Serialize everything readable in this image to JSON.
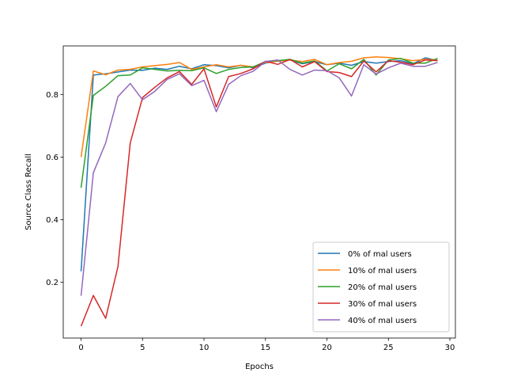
{
  "chart_data": {
    "type": "line",
    "title": "",
    "xlabel": "Epochs",
    "ylabel": "Source Class Recall",
    "xlim": [
      -1.45,
      30.45
    ],
    "ylim": [
      0.022,
      0.955
    ],
    "xticks": [
      0,
      5,
      10,
      15,
      20,
      25,
      30
    ],
    "yticks": [
      0.2,
      0.4,
      0.6,
      0.8
    ],
    "grid": false,
    "legend_position": "lower right",
    "x": [
      0,
      1,
      2,
      3,
      4,
      5,
      6,
      7,
      8,
      9,
      10,
      11,
      12,
      13,
      14,
      15,
      16,
      17,
      18,
      19,
      20,
      21,
      22,
      23,
      24,
      25,
      26,
      27,
      28,
      29
    ],
    "series": [
      {
        "name": "0% of mal users",
        "color": "#1f77b4",
        "values": [
          0.235,
          0.862,
          0.866,
          0.872,
          0.878,
          0.877,
          0.884,
          0.88,
          0.89,
          0.882,
          0.895,
          0.892,
          0.885,
          0.893,
          0.885,
          0.9,
          0.908,
          0.91,
          0.898,
          0.905,
          0.895,
          0.9,
          0.893,
          0.905,
          0.9,
          0.905,
          0.908,
          0.898,
          0.917,
          0.908
        ]
      },
      {
        "name": "10% of mal users",
        "color": "#ff7f0e",
        "values": [
          0.6,
          0.875,
          0.863,
          0.878,
          0.88,
          0.888,
          0.892,
          0.896,
          0.902,
          0.88,
          0.888,
          0.895,
          0.888,
          0.893,
          0.888,
          0.902,
          0.906,
          0.91,
          0.905,
          0.912,
          0.895,
          0.902,
          0.906,
          0.917,
          0.92,
          0.918,
          0.914,
          0.908,
          0.912,
          0.91
        ]
      },
      {
        "name": "20% of mal users",
        "color": "#2ca02c",
        "values": [
          0.502,
          0.797,
          0.826,
          0.86,
          0.862,
          0.885,
          0.88,
          0.875,
          0.877,
          0.876,
          0.885,
          0.867,
          0.88,
          0.886,
          0.888,
          0.905,
          0.908,
          0.912,
          0.9,
          0.907,
          0.875,
          0.898,
          0.882,
          0.912,
          0.862,
          0.91,
          0.915,
          0.9,
          0.9,
          0.915
        ]
      },
      {
        "name": "30% of mal users",
        "color": "#d62728",
        "values": [
          0.06,
          0.158,
          0.085,
          0.25,
          0.645,
          0.79,
          0.823,
          0.853,
          0.873,
          0.832,
          0.882,
          0.76,
          0.857,
          0.867,
          0.882,
          0.906,
          0.896,
          0.912,
          0.888,
          0.905,
          0.873,
          0.87,
          0.857,
          0.907,
          0.872,
          0.908,
          0.903,
          0.895,
          0.91,
          0.908
        ]
      },
      {
        "name": "40% of mal users",
        "color": "#9467bd",
        "values": [
          0.157,
          0.55,
          0.645,
          0.793,
          0.835,
          0.783,
          0.81,
          0.848,
          0.866,
          0.828,
          0.845,
          0.745,
          0.832,
          0.86,
          0.874,
          0.905,
          0.91,
          0.88,
          0.862,
          0.878,
          0.876,
          0.853,
          0.795,
          0.895,
          0.865,
          0.885,
          0.9,
          0.89,
          0.89,
          0.902
        ]
      }
    ]
  }
}
